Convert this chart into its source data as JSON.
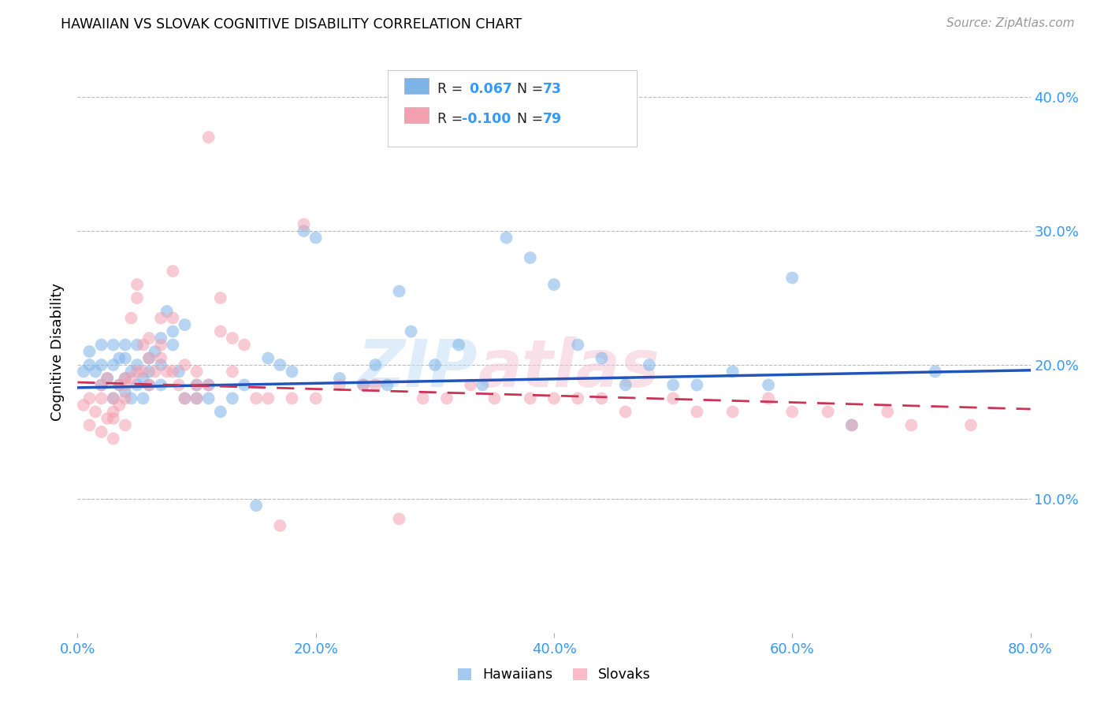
{
  "title": "HAWAIIAN VS SLOVAK COGNITIVE DISABILITY CORRELATION CHART",
  "source": "Source: ZipAtlas.com",
  "xlabel_ticks": [
    "0.0%",
    "20.0%",
    "40.0%",
    "60.0%",
    "80.0%"
  ],
  "ylabel_ticks": [
    "10.0%",
    "20.0%",
    "30.0%",
    "40.0%"
  ],
  "ylabel_label": "Cognitive Disability",
  "x_min": 0.0,
  "x_max": 0.8,
  "y_min": 0.0,
  "y_max": 0.42,
  "hawaiian_color": "#7cb4e8",
  "slovak_color": "#f4a0b0",
  "hawaiian_line_color": "#2255bb",
  "slovak_line_color": "#cc3355",
  "watermark": "ZIPatlas",
  "hawaiian_x": [
    0.005,
    0.01,
    0.01,
    0.015,
    0.02,
    0.02,
    0.02,
    0.025,
    0.03,
    0.03,
    0.03,
    0.035,
    0.035,
    0.04,
    0.04,
    0.04,
    0.04,
    0.045,
    0.045,
    0.05,
    0.05,
    0.05,
    0.055,
    0.055,
    0.06,
    0.06,
    0.06,
    0.065,
    0.07,
    0.07,
    0.07,
    0.075,
    0.08,
    0.08,
    0.085,
    0.09,
    0.09,
    0.1,
    0.1,
    0.11,
    0.11,
    0.12,
    0.13,
    0.14,
    0.15,
    0.16,
    0.17,
    0.18,
    0.19,
    0.2,
    0.22,
    0.24,
    0.25,
    0.26,
    0.27,
    0.28,
    0.3,
    0.32,
    0.34,
    0.36,
    0.38,
    0.4,
    0.42,
    0.44,
    0.46,
    0.48,
    0.5,
    0.52,
    0.55,
    0.58,
    0.6,
    0.65,
    0.72
  ],
  "hawaiian_y": [
    0.195,
    0.2,
    0.21,
    0.195,
    0.185,
    0.2,
    0.215,
    0.19,
    0.175,
    0.2,
    0.215,
    0.185,
    0.205,
    0.19,
    0.18,
    0.205,
    0.215,
    0.195,
    0.175,
    0.185,
    0.2,
    0.215,
    0.19,
    0.175,
    0.205,
    0.195,
    0.185,
    0.21,
    0.22,
    0.185,
    0.2,
    0.24,
    0.225,
    0.215,
    0.195,
    0.23,
    0.175,
    0.185,
    0.175,
    0.175,
    0.185,
    0.165,
    0.175,
    0.185,
    0.095,
    0.205,
    0.2,
    0.195,
    0.3,
    0.295,
    0.19,
    0.185,
    0.2,
    0.185,
    0.255,
    0.225,
    0.2,
    0.215,
    0.185,
    0.295,
    0.28,
    0.26,
    0.215,
    0.205,
    0.185,
    0.2,
    0.185,
    0.185,
    0.195,
    0.185,
    0.265,
    0.155,
    0.195
  ],
  "slovak_x": [
    0.005,
    0.01,
    0.01,
    0.015,
    0.02,
    0.02,
    0.02,
    0.025,
    0.025,
    0.03,
    0.03,
    0.03,
    0.03,
    0.035,
    0.035,
    0.04,
    0.04,
    0.04,
    0.04,
    0.045,
    0.045,
    0.05,
    0.05,
    0.05,
    0.055,
    0.055,
    0.06,
    0.06,
    0.06,
    0.065,
    0.07,
    0.07,
    0.07,
    0.075,
    0.08,
    0.08,
    0.08,
    0.085,
    0.09,
    0.09,
    0.1,
    0.1,
    0.1,
    0.11,
    0.11,
    0.12,
    0.12,
    0.13,
    0.13,
    0.14,
    0.15,
    0.16,
    0.17,
    0.18,
    0.19,
    0.2,
    0.22,
    0.24,
    0.25,
    0.27,
    0.29,
    0.31,
    0.33,
    0.35,
    0.38,
    0.4,
    0.42,
    0.44,
    0.46,
    0.5,
    0.52,
    0.55,
    0.58,
    0.6,
    0.63,
    0.65,
    0.68,
    0.7,
    0.75
  ],
  "slovak_y": [
    0.17,
    0.155,
    0.175,
    0.165,
    0.185,
    0.175,
    0.15,
    0.19,
    0.16,
    0.175,
    0.16,
    0.165,
    0.145,
    0.185,
    0.17,
    0.185,
    0.19,
    0.175,
    0.155,
    0.235,
    0.19,
    0.26,
    0.25,
    0.195,
    0.215,
    0.195,
    0.205,
    0.22,
    0.185,
    0.195,
    0.235,
    0.215,
    0.205,
    0.195,
    0.27,
    0.235,
    0.195,
    0.185,
    0.2,
    0.175,
    0.195,
    0.185,
    0.175,
    0.37,
    0.185,
    0.25,
    0.225,
    0.22,
    0.195,
    0.215,
    0.175,
    0.175,
    0.08,
    0.175,
    0.305,
    0.175,
    0.185,
    0.185,
    0.185,
    0.085,
    0.175,
    0.175,
    0.185,
    0.175,
    0.175,
    0.175,
    0.175,
    0.175,
    0.165,
    0.175,
    0.165,
    0.165,
    0.175,
    0.165,
    0.165,
    0.155,
    0.165,
    0.155,
    0.155
  ]
}
